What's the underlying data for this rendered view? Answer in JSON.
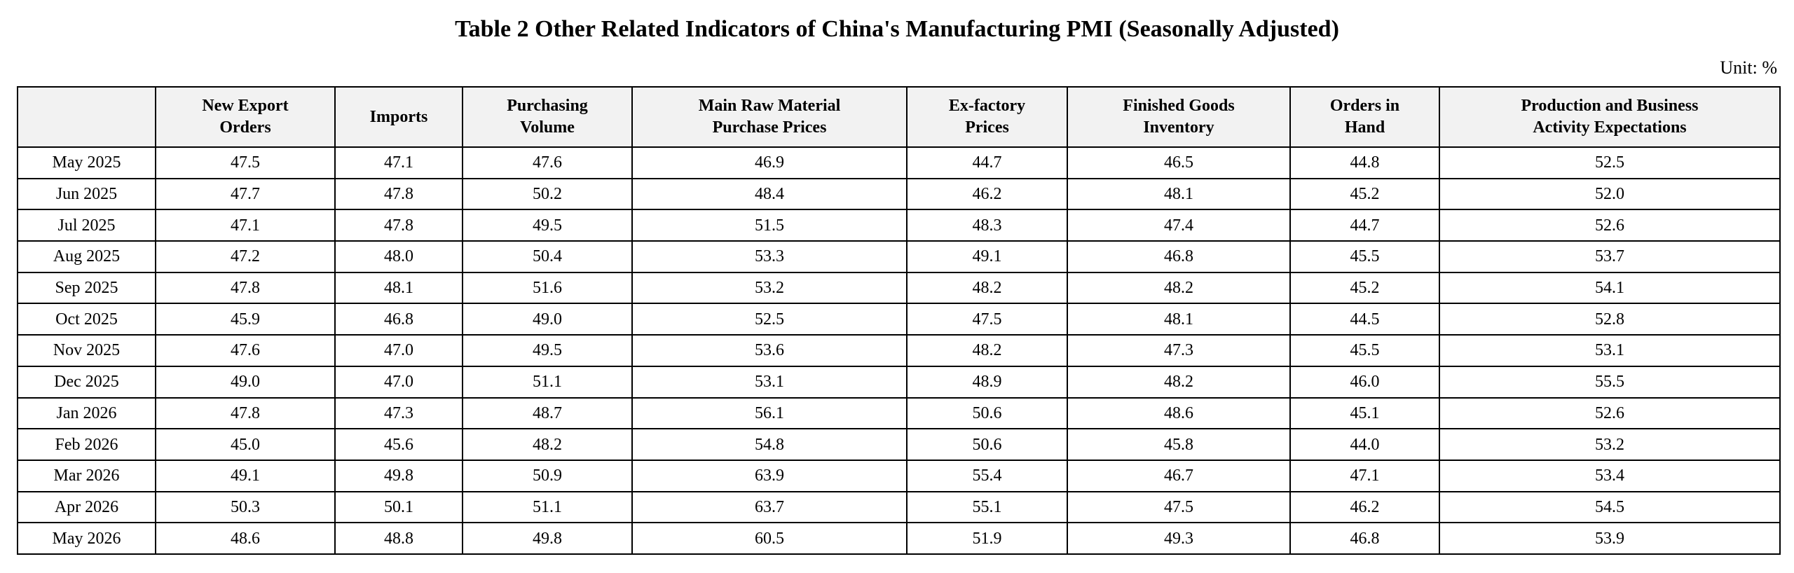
{
  "title": "Table 2 Other Related Indicators of China's Manufacturing PMI (Seasonally Adjusted)",
  "unit": "Unit: %",
  "columns": [
    "",
    "New Export\nOrders",
    "Imports",
    "Purchasing\nVolume",
    "Main Raw Material\nPurchase Prices",
    "Ex-factory\nPrices",
    "Finished Goods\nInventory",
    "Orders in\nHand",
    "Production and Business\nActivity Expectations"
  ],
  "rows": [
    [
      "May 2025",
      "47.5",
      "47.1",
      "47.6",
      "46.9",
      "44.7",
      "46.5",
      "44.8",
      "52.5"
    ],
    [
      "Jun 2025",
      "47.7",
      "47.8",
      "50.2",
      "48.4",
      "46.2",
      "48.1",
      "45.2",
      "52.0"
    ],
    [
      "Jul 2025",
      "47.1",
      "47.8",
      "49.5",
      "51.5",
      "48.3",
      "47.4",
      "44.7",
      "52.6"
    ],
    [
      "Aug 2025",
      "47.2",
      "48.0",
      "50.4",
      "53.3",
      "49.1",
      "46.8",
      "45.5",
      "53.7"
    ],
    [
      "Sep 2025",
      "47.8",
      "48.1",
      "51.6",
      "53.2",
      "48.2",
      "48.2",
      "45.2",
      "54.1"
    ],
    [
      "Oct 2025",
      "45.9",
      "46.8",
      "49.0",
      "52.5",
      "47.5",
      "48.1",
      "44.5",
      "52.8"
    ],
    [
      "Nov 2025",
      "47.6",
      "47.0",
      "49.5",
      "53.6",
      "48.2",
      "47.3",
      "45.5",
      "53.1"
    ],
    [
      "Dec 2025",
      "49.0",
      "47.0",
      "51.1",
      "53.1",
      "48.9",
      "48.2",
      "46.0",
      "55.5"
    ],
    [
      "Jan 2026",
      "47.8",
      "47.3",
      "48.7",
      "56.1",
      "50.6",
      "48.6",
      "45.1",
      "52.6"
    ],
    [
      "Feb 2026",
      "45.0",
      "45.6",
      "48.2",
      "54.8",
      "50.6",
      "45.8",
      "44.0",
      "53.2"
    ],
    [
      "Mar 2026",
      "49.1",
      "49.8",
      "50.9",
      "63.9",
      "55.4",
      "46.7",
      "47.1",
      "53.4"
    ],
    [
      "Apr 2026",
      "50.3",
      "50.1",
      "51.1",
      "63.7",
      "55.1",
      "47.5",
      "46.2",
      "54.5"
    ],
    [
      "May 2026",
      "48.6",
      "48.8",
      "49.8",
      "60.5",
      "51.9",
      "49.3",
      "46.8",
      "53.9"
    ]
  ],
  "colors": {
    "header_background": "#f2f2f2",
    "border": "#000000",
    "text": "#000000"
  }
}
